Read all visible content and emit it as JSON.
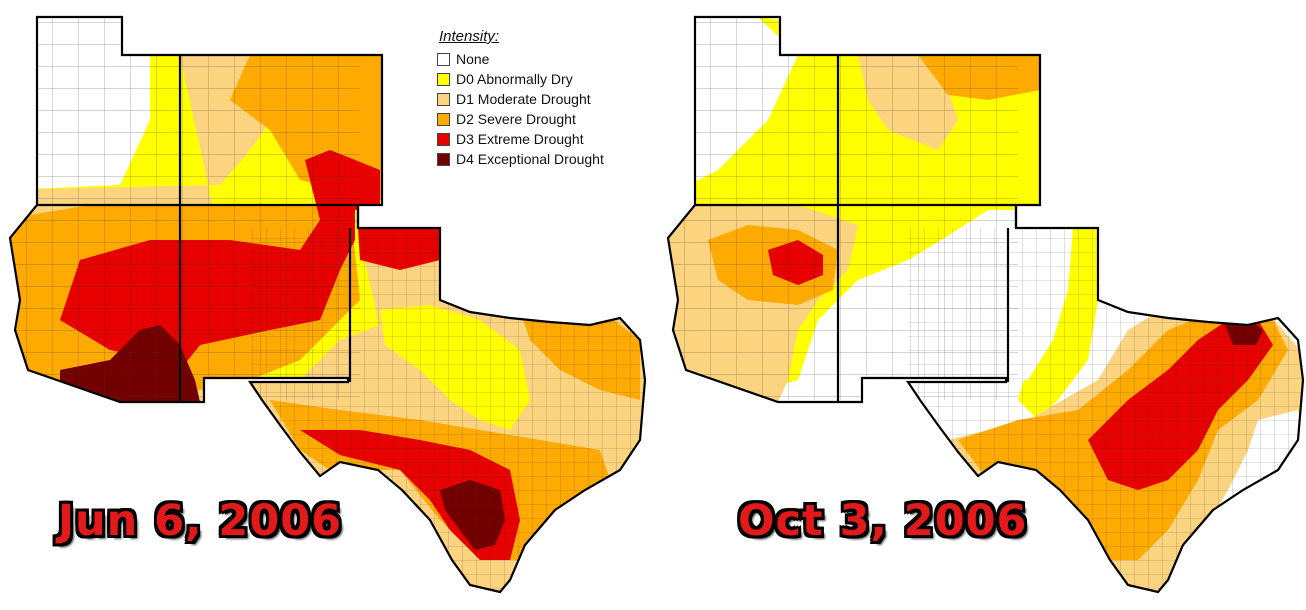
{
  "legend": {
    "title": "Intensity:",
    "items": [
      {
        "label": "None",
        "color": "#ffffff"
      },
      {
        "label": "D0 Abnormally Dry",
        "color": "#ffff00"
      },
      {
        "label": "D1 Moderate Drought",
        "color": "#fcd37f"
      },
      {
        "label": "D2 Severe Drought",
        "color": "#ffaa00"
      },
      {
        "label": "D3 Extreme Drought",
        "color": "#e60000"
      },
      {
        "label": "D4 Exceptional Drought",
        "color": "#730000"
      }
    ]
  },
  "maps": [
    {
      "date": "Jun 6, 2006"
    },
    {
      "date": "Oct 3, 2006"
    }
  ],
  "colors": {
    "label_fill": "#e41a1a",
    "label_outline": "#000000",
    "state_border": "#000000",
    "county_line": "#222222"
  }
}
